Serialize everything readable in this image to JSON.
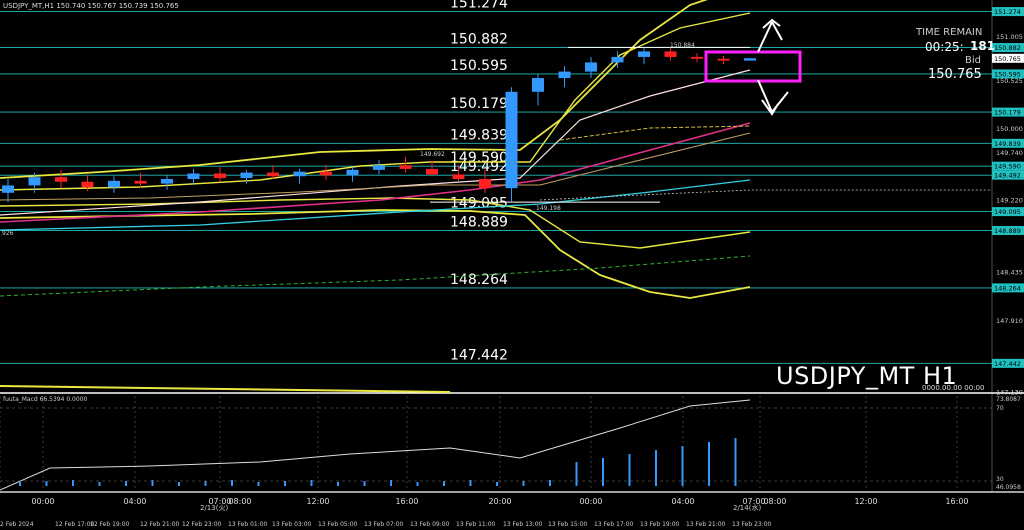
{
  "header": {
    "symbol_info": "USDJPY_MT,H1  150.740 150.767 150.739 150.765"
  },
  "levels": [
    {
      "label": "151.274"
    },
    {
      "label": "150.882"
    },
    {
      "label": "150.595"
    },
    {
      "label": "150.179"
    },
    {
      "label": "149.839"
    },
    {
      "label": "149.590"
    },
    {
      "label": "149.492"
    },
    {
      "label": "149.095"
    },
    {
      "label": "148.889"
    },
    {
      "label": "148.264"
    },
    {
      "label": "147.442"
    }
  ],
  "small_labels": {
    "high_mark": "150.884",
    "low_mark": "149.198",
    "mid_mark": "149.692",
    "left_mark": "926"
  },
  "price_tags": [
    "151.274",
    "150.882",
    "150.765",
    "150.595",
    "150.179",
    "149.839",
    "149.590",
    "149.492",
    "149.095",
    "148.889",
    "148.264",
    "147.442"
  ],
  "axis_prices": [
    "151.005",
    "150.525",
    "150.000",
    "149.740",
    "149.220",
    "148.435",
    "147.910",
    "147.130"
  ],
  "info_panel": {
    "time_remain_label": "TIME REMAIN",
    "time_remain_value": "00:25:",
    "time_overlay": "181",
    "bid_label": "Bid",
    "bid_value": "150.765"
  },
  "watermark": "USDJPY_MT H1",
  "zero_readout": "0000.00.00 00:00",
  "macd": {
    "label": "fuuta_Macd 66.5394  0.0000",
    "axis_top": "73.8087",
    "axis_70": "70",
    "axis_30": "30",
    "axis_bottom": "46.0958"
  },
  "time_axis": [
    "00:00",
    "04:00",
    "07:00",
    "08:00",
    "12:00",
    "16:00",
    "20:00",
    "00:00",
    "04:00",
    "07:00",
    "08:00",
    "12:00",
    "16:00"
  ],
  "date_marks": [
    "2/13(火)",
    "2/14(水)"
  ],
  "date_axis": [
    "2 Feb 2024",
    "12 Feb 17:00",
    "12 Feb 19:00",
    "12 Feb 21:00",
    "12 Feb 23:00",
    "13 Feb 01:00",
    "13 Feb 03:00",
    "13 Feb 05:00",
    "13 Feb 07:00",
    "13 Feb 09:00",
    "13 Feb 11:00",
    "13 Feb 13:00",
    "13 Feb 15:00",
    "13 Feb 17:00",
    "13 Feb 19:00",
    "13 Feb 21:00",
    "13 Feb 23:00"
  ],
  "colors": {
    "background": "#000000",
    "level_line": "#20c0c0",
    "bull_candle": "#3399ff",
    "bear_candle": "#ff2020",
    "band_yellow": "#e8e840",
    "ma_magenta": "#e0308a",
    "highlight_box": "#ff20ff"
  },
  "chart_data": {
    "type": "candlestick",
    "symbol": "USDJPY_MT",
    "timeframe": "H1",
    "candles": [
      {
        "o": 149.3,
        "h": 149.45,
        "l": 149.2,
        "c": 149.38
      },
      {
        "o": 149.38,
        "h": 149.52,
        "l": 149.3,
        "c": 149.47
      },
      {
        "o": 149.47,
        "h": 149.55,
        "l": 149.35,
        "c": 149.42
      },
      {
        "o": 149.42,
        "h": 149.5,
        "l": 149.32,
        "c": 149.36
      },
      {
        "o": 149.36,
        "h": 149.48,
        "l": 149.3,
        "c": 149.43
      },
      {
        "o": 149.43,
        "h": 149.52,
        "l": 149.36,
        "c": 149.4
      },
      {
        "o": 149.4,
        "h": 149.49,
        "l": 149.33,
        "c": 149.45
      },
      {
        "o": 149.45,
        "h": 149.56,
        "l": 149.4,
        "c": 149.51
      },
      {
        "o": 149.51,
        "h": 149.58,
        "l": 149.42,
        "c": 149.46
      },
      {
        "o": 149.46,
        "h": 149.55,
        "l": 149.4,
        "c": 149.52
      },
      {
        "o": 149.52,
        "h": 149.6,
        "l": 149.45,
        "c": 149.48
      },
      {
        "o": 149.48,
        "h": 149.56,
        "l": 149.4,
        "c": 149.53
      },
      {
        "o": 149.53,
        "h": 149.6,
        "l": 149.44,
        "c": 149.49
      },
      {
        "o": 149.49,
        "h": 149.58,
        "l": 149.42,
        "c": 149.55
      },
      {
        "o": 149.55,
        "h": 149.66,
        "l": 149.5,
        "c": 149.6
      },
      {
        "o": 149.6,
        "h": 149.69,
        "l": 149.52,
        "c": 149.56
      },
      {
        "o": 149.56,
        "h": 149.65,
        "l": 149.48,
        "c": 149.5
      },
      {
        "o": 149.5,
        "h": 149.6,
        "l": 149.42,
        "c": 149.45
      },
      {
        "o": 149.45,
        "h": 149.55,
        "l": 149.3,
        "c": 149.35
      },
      {
        "o": 149.35,
        "h": 150.45,
        "l": 149.2,
        "c": 150.4
      },
      {
        "o": 150.4,
        "h": 150.6,
        "l": 150.25,
        "c": 150.55
      },
      {
        "o": 150.55,
        "h": 150.68,
        "l": 150.45,
        "c": 150.62
      },
      {
        "o": 150.62,
        "h": 150.78,
        "l": 150.55,
        "c": 150.72
      },
      {
        "o": 150.72,
        "h": 150.84,
        "l": 150.66,
        "c": 150.78
      },
      {
        "o": 150.78,
        "h": 150.88,
        "l": 150.7,
        "c": 150.84
      },
      {
        "o": 150.84,
        "h": 150.88,
        "l": 150.74,
        "c": 150.78
      },
      {
        "o": 150.78,
        "h": 150.82,
        "l": 150.72,
        "c": 150.76
      },
      {
        "o": 150.76,
        "h": 150.79,
        "l": 150.7,
        "c": 150.74
      },
      {
        "o": 150.74,
        "h": 150.767,
        "l": 150.739,
        "c": 150.765
      }
    ],
    "horizontal_levels": [
      151.274,
      150.882,
      150.595,
      150.179,
      149.839,
      149.59,
      149.492,
      149.095,
      148.889,
      148.264,
      147.442
    ],
    "ylim": [
      147.13,
      151.4
    ],
    "macd_ylim": [
      46.0958,
      73.8087
    ]
  }
}
